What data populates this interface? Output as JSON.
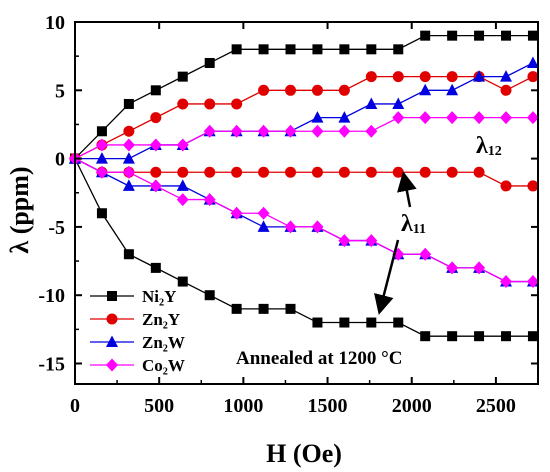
{
  "chart_data": {
    "type": "line",
    "xlabel": "H (Oe)",
    "ylabel": "λ (ppm)",
    "xlim": [
      0,
      2750
    ],
    "ylim": [
      -16.5,
      10
    ],
    "xticks": [
      0,
      500,
      1000,
      1500,
      2000,
      2500
    ],
    "yticks": [
      10,
      5,
      0,
      -5,
      -10,
      -15
    ],
    "legend_position": "bottom-left",
    "x": [
      0,
      160,
      320,
      480,
      640,
      800,
      960,
      1120,
      1280,
      1440,
      1600,
      1760,
      1920,
      2080,
      2240,
      2400,
      2560,
      2720
    ],
    "series": [
      {
        "name": "Ni₂Y",
        "group": "λ12",
        "color": "#000000",
        "marker": "square",
        "values": [
          0,
          2,
          4,
          5,
          6,
          7,
          8,
          8,
          8,
          8,
          8,
          8,
          8,
          9,
          9,
          9,
          9,
          9
        ]
      },
      {
        "name": "Ni₂Y",
        "group": "λ11",
        "color": "#000000",
        "marker": "square",
        "values": [
          0,
          -4,
          -7,
          -8,
          -9,
          -10,
          -11,
          -11,
          -11,
          -12,
          -12,
          -12,
          -12,
          -13,
          -13,
          -13,
          -13,
          -13
        ]
      },
      {
        "name": "Zn₂Y",
        "group": "λ12",
        "color": "#e00000",
        "marker": "circle",
        "values": [
          0,
          1,
          2,
          3,
          4,
          4,
          4,
          5,
          5,
          5,
          5,
          6,
          6,
          6,
          6,
          6,
          5,
          6
        ]
      },
      {
        "name": "Zn₂Y",
        "group": "λ11",
        "color": "#e00000",
        "marker": "circle",
        "values": [
          0,
          -1,
          -1,
          -1,
          -1,
          -1,
          -1,
          -1,
          -1,
          -1,
          -1,
          -1,
          -1,
          -1,
          -1,
          -1,
          -2,
          -2
        ]
      },
      {
        "name": "Zn₂W",
        "group": "λ12",
        "color": "#0000e0",
        "marker": "triangle",
        "values": [
          0,
          0,
          0,
          1,
          1,
          2,
          2,
          2,
          2,
          3,
          3,
          4,
          4,
          5,
          5,
          6,
          6,
          7
        ]
      },
      {
        "name": "Zn₂W",
        "group": "λ11",
        "color": "#0000e0",
        "marker": "triangle",
        "values": [
          0,
          -1,
          -2,
          -2,
          -2,
          -3,
          -4,
          -5,
          -5,
          -5,
          -6,
          -6,
          -7,
          -7,
          -8,
          -8,
          -9,
          -9
        ]
      },
      {
        "name": "Co₂W",
        "group": "λ12",
        "color": "#ff00ff",
        "marker": "diamond",
        "values": [
          0,
          1,
          1,
          1,
          1,
          2,
          2,
          2,
          2,
          2,
          2,
          2,
          3,
          3,
          3,
          3,
          3,
          3
        ]
      },
      {
        "name": "Co₂W",
        "group": "λ11",
        "color": "#ff00ff",
        "marker": "diamond",
        "values": [
          0,
          -1,
          -1,
          -2,
          -3,
          -3,
          -4,
          -4,
          -5,
          -5,
          -6,
          -6,
          -7,
          -7,
          -8,
          -8,
          -9,
          -9
        ]
      }
    ],
    "legend": [
      {
        "label": "Ni₂Y",
        "color": "#000000",
        "marker": "square"
      },
      {
        "label": "Zn₂Y",
        "color": "#e00000",
        "marker": "circle"
      },
      {
        "label": "Zn₂W",
        "color": "#0000e0",
        "marker": "triangle"
      },
      {
        "label": "Co₂W",
        "color": "#ff00ff",
        "marker": "diamond"
      }
    ],
    "annotations": {
      "lambda12": "λ",
      "lambda12_sub": "12",
      "lambda11": "λ",
      "lambda11_sub": "11",
      "annealed": "Annealed at 1200 °C"
    }
  }
}
